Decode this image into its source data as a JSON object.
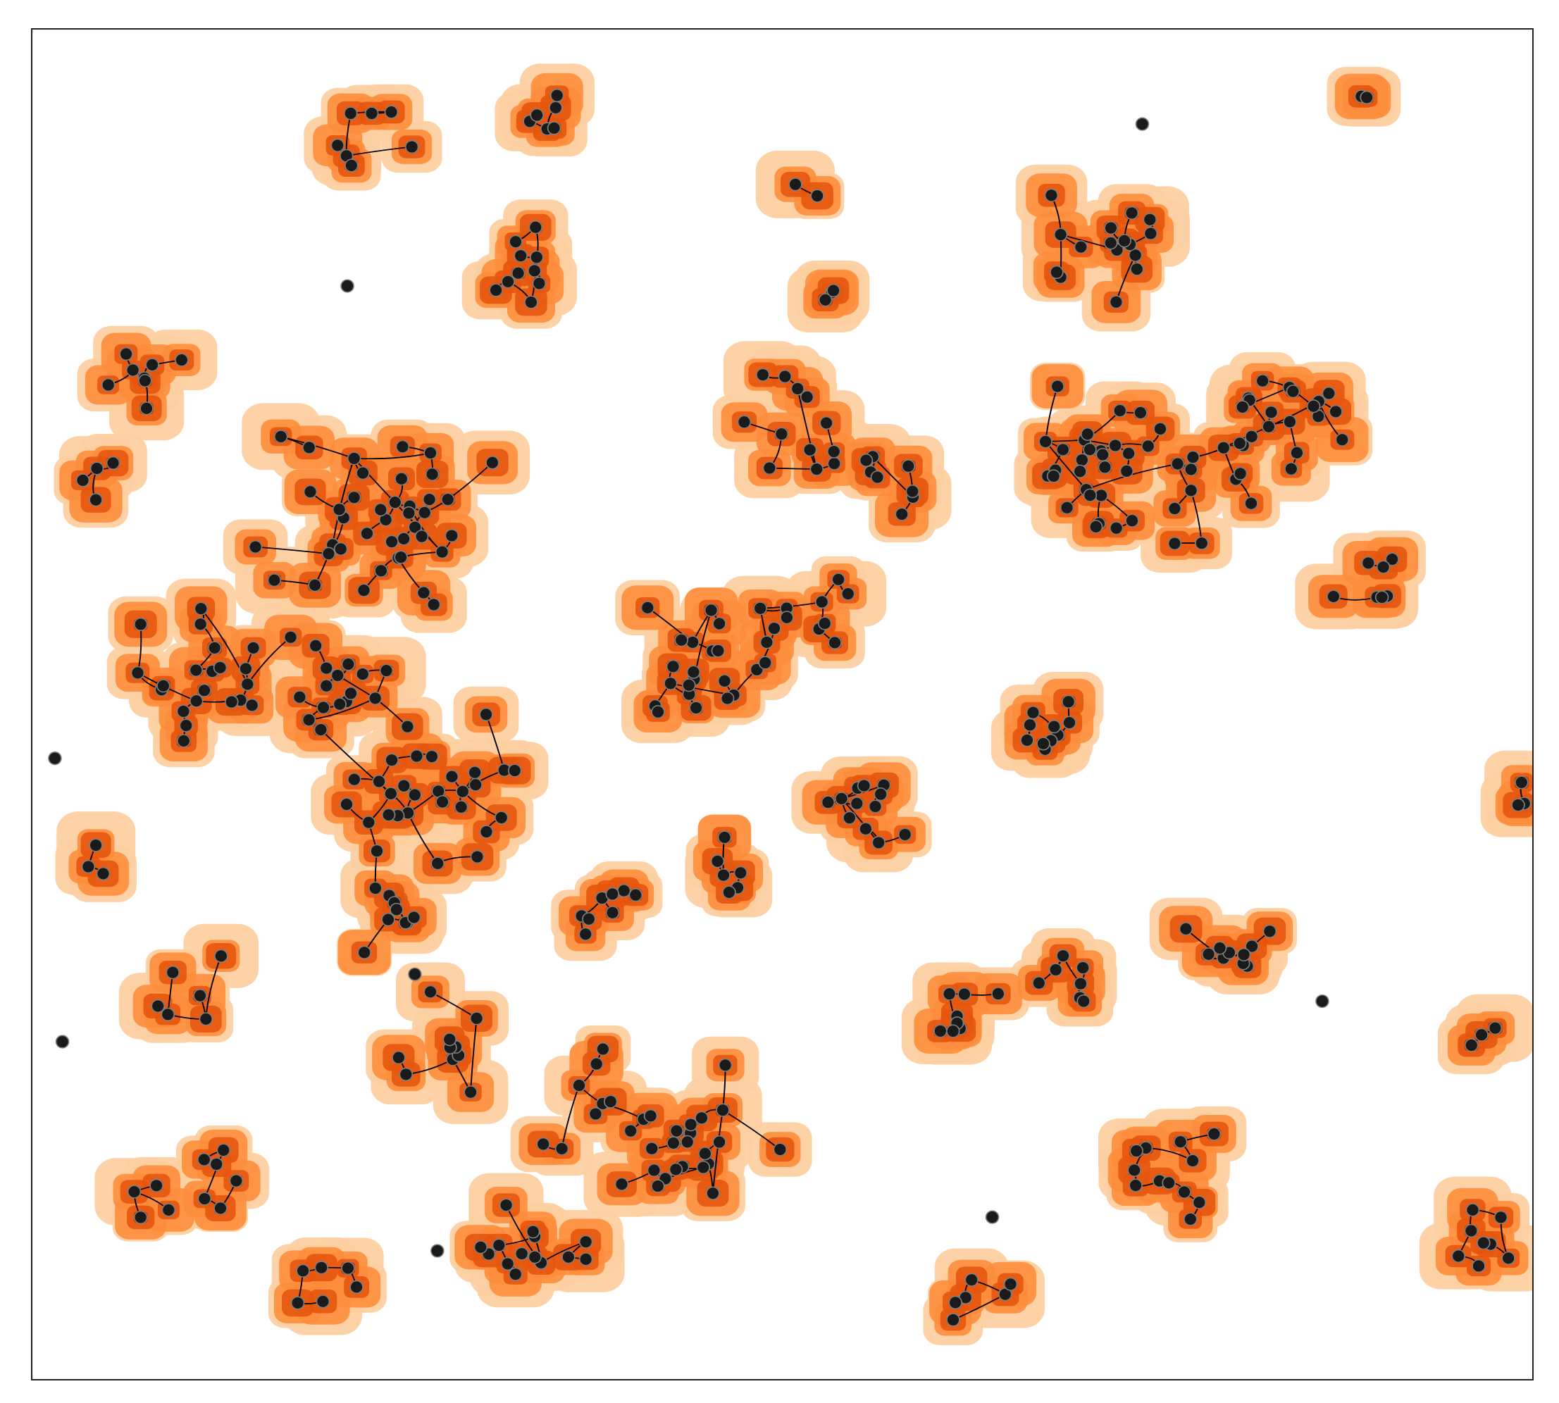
{
  "map": {
    "colors": {
      "background": "#ffffff",
      "frame": "#222222",
      "halo_outer": "#fdd0a2",
      "halo_mid": "#fd8d3c",
      "halo_inner": "#e6550d",
      "core": "#a63603",
      "network_line": "#000000",
      "node_fill": "#1a1a1a",
      "node_stroke": "#7f7f7f"
    },
    "node_count": 380,
    "cluster_count": 40
  }
}
